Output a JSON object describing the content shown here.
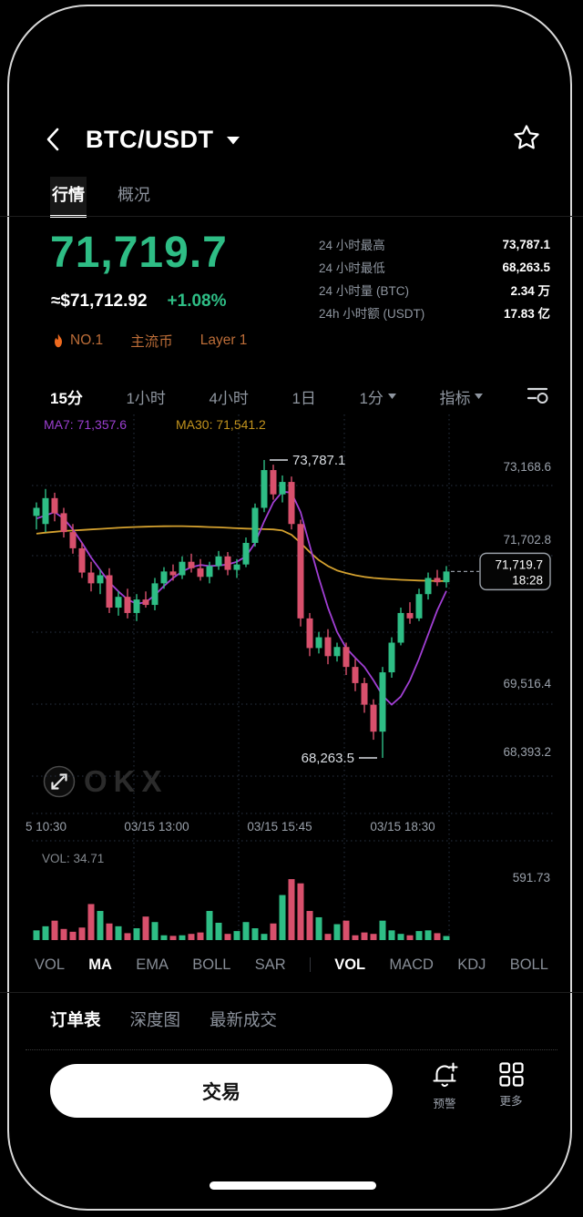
{
  "colors": {
    "up_green": "#2ebd85",
    "down_red": "#d8506c",
    "ma7_purple": "#a13fd4",
    "ma7_label": "#9b3fd0",
    "ma30_orange": "#d4a12f",
    "ma30_label": "#c2931d",
    "badge_orange": "#bc6d38",
    "flame_orange": "#ee6a1f",
    "muted_gray": "#8f96a0",
    "axis_gray": "#9aa1ab",
    "grid": "#2a3345"
  },
  "header": {
    "pair": "BTC/USDT"
  },
  "nav_tabs": [
    {
      "label": "行情",
      "active": true
    },
    {
      "label": "概况",
      "active": false
    }
  ],
  "price": {
    "last": "71,719.7",
    "fiat": "≈$71,712.92",
    "change": "+1.08%"
  },
  "badges": [
    {
      "label": "NO.1",
      "icon": "flame-icon"
    },
    {
      "label": "主流币"
    },
    {
      "label": "Layer 1"
    }
  ],
  "stats": [
    {
      "label": "24 小时最高",
      "value": "73,787.1"
    },
    {
      "label": "24 小时最低",
      "value": "68,263.5"
    },
    {
      "label": "24 小时量 (BTC)",
      "value": "2.34 万"
    },
    {
      "label": "24h 小时额 (USDT)",
      "value": "17.83 亿"
    }
  ],
  "timeframes": {
    "items": [
      "15分",
      "1小时",
      "4小时",
      "1日"
    ],
    "active_index": 0,
    "dropdown_interval": "1分",
    "dropdown_indicator": "指标"
  },
  "chart_data": {
    "type": "candlestick+volume",
    "ma7_label": "MA7: 71,357.6",
    "ma30_label": "MA30: 71,541.2",
    "y_axis_labels": [
      "73,168.6",
      "71,702.8",
      "69,516.4",
      "68,393.2"
    ],
    "x_axis_labels": [
      "5 10:30",
      "03/15 13:00",
      "03/15 15:45",
      "03/15 18:30"
    ],
    "annotations": {
      "high": "73,787.1",
      "low": "68,263.5",
      "last": "71,719.7",
      "last_time": "18:28"
    },
    "watermark": "OKX",
    "volume_label": "VOL: 34.71",
    "volume_axis_max": 591.73,
    "high_index": 25,
    "low_index": 38,
    "candles": [
      [
        72750,
        73000,
        72500,
        72900
      ],
      [
        72600,
        73250,
        72450,
        73080
      ],
      [
        73080,
        73180,
        72650,
        72800
      ],
      [
        72800,
        72900,
        72350,
        72450
      ],
      [
        72450,
        72600,
        72050,
        72150
      ],
      [
        72150,
        72250,
        71600,
        71700
      ],
      [
        71700,
        71900,
        71350,
        71500
      ],
      [
        71500,
        71750,
        71300,
        71650
      ],
      [
        71650,
        71780,
        70950,
        71050
      ],
      [
        71050,
        71350,
        70900,
        71250
      ],
      [
        71250,
        71400,
        70850,
        70950
      ],
      [
        70950,
        71300,
        70800,
        71200
      ],
      [
        71200,
        71350,
        71050,
        71100
      ],
      [
        71100,
        71600,
        71000,
        71500
      ],
      [
        71500,
        71800,
        71400,
        71720
      ],
      [
        71720,
        71850,
        71550,
        71650
      ],
      [
        71650,
        72000,
        71580,
        71900
      ],
      [
        71900,
        72050,
        71700,
        71780
      ],
      [
        71780,
        71950,
        71550,
        71620
      ],
      [
        71620,
        71900,
        71500,
        71820
      ],
      [
        71820,
        72100,
        71750,
        72000
      ],
      [
        72000,
        72080,
        71650,
        71750
      ],
      [
        71750,
        71950,
        71600,
        71850
      ],
      [
        71850,
        72350,
        71800,
        72250
      ],
      [
        72250,
        72980,
        72180,
        72900
      ],
      [
        72900,
        73787.1,
        72820,
        73600
      ],
      [
        73600,
        73700,
        73050,
        73150
      ],
      [
        73150,
        73500,
        73000,
        73380
      ],
      [
        73380,
        73480,
        72500,
        72600
      ],
      [
        72600,
        72680,
        70700,
        70850
      ],
      [
        70850,
        70950,
        70150,
        70300
      ],
      [
        70300,
        70600,
        70200,
        70500
      ],
      [
        70500,
        70650,
        70000,
        70150
      ],
      [
        70150,
        70400,
        70050,
        70320
      ],
      [
        70320,
        70400,
        69800,
        69950
      ],
      [
        69950,
        70100,
        69500,
        69650
      ],
      [
        69650,
        69750,
        69100,
        69250
      ],
      [
        69250,
        69350,
        68600,
        68750
      ],
      [
        68750,
        69950,
        68263.5,
        69850
      ],
      [
        69850,
        70500,
        69750,
        70400
      ],
      [
        70400,
        71050,
        70350,
        70950
      ],
      [
        70950,
        71150,
        70750,
        70850
      ],
      [
        70850,
        71400,
        70800,
        71300
      ],
      [
        71300,
        71700,
        71200,
        71600
      ],
      [
        71600,
        71750,
        71450,
        71520
      ],
      [
        71520,
        71820,
        71420,
        71719.7
      ]
    ],
    "ma7": [
      72700,
      72760,
      72820,
      72700,
      72500,
      72250,
      71980,
      71750,
      71520,
      71350,
      71200,
      71120,
      71150,
      71280,
      71450,
      71600,
      71720,
      71800,
      71840,
      71820,
      71830,
      71850,
      71900,
      72000,
      72250,
      72650,
      73000,
      73200,
      73180,
      72820,
      72200,
      71600,
      71050,
      70600,
      70300,
      70120,
      69950,
      69700,
      69420,
      69250,
      69400,
      69700,
      70100,
      70550,
      71000,
      71357.6
    ],
    "ma30": [
      72420,
      72440,
      72455,
      72470,
      72480,
      72490,
      72500,
      72510,
      72520,
      72530,
      72538,
      72545,
      72550,
      72555,
      72558,
      72560,
      72560,
      72556,
      72550,
      72544,
      72538,
      72530,
      72522,
      72515,
      72510,
      72505,
      72500,
      72480,
      72400,
      72250,
      72080,
      71930,
      71820,
      71740,
      71690,
      71650,
      71620,
      71600,
      71585,
      71575,
      71565,
      71558,
      71552,
      71548,
      71544,
      71541.2
    ],
    "volumes": [
      83,
      118,
      166,
      95,
      71,
      107,
      308,
      249,
      142,
      118,
      59,
      101,
      201,
      154,
      41,
      36,
      41,
      53,
      65,
      249,
      148,
      53,
      77,
      154,
      101,
      53,
      142,
      385,
      521,
      485,
      249,
      195,
      53,
      136,
      166,
      41,
      65,
      53,
      166,
      83,
      53,
      41,
      77,
      83,
      59,
      34.71
    ]
  },
  "indicator_tabs": {
    "left": [
      "VOL",
      "MA",
      "EMA",
      "BOLL",
      "SAR"
    ],
    "left_active_index": 1,
    "right": [
      "VOL",
      "MACD",
      "KDJ",
      "BOLL"
    ],
    "right_active_index": 0
  },
  "bottom_tabs": [
    {
      "label": "订单表",
      "active": true
    },
    {
      "label": "深度图",
      "active": false
    },
    {
      "label": "最新成交",
      "active": false
    }
  ],
  "footer": {
    "trade_label": "交易",
    "actions": [
      {
        "label": "预警",
        "icon": "bell-plus-icon"
      },
      {
        "label": "更多",
        "icon": "grid-icon"
      }
    ]
  }
}
